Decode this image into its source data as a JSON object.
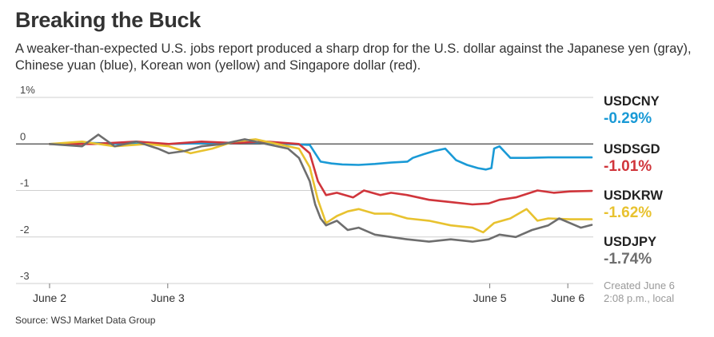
{
  "header": {
    "title": "Breaking the Buck",
    "subtitle": "A weaker-than-expected U.S. jobs report produced a sharp drop for the U.S. dollar against the Japanese yen (gray), Chinese yuan (blue), Korean won (yellow) and Singapore dollar (red)."
  },
  "footer": {
    "source": "Source: WSJ Market Data Group",
    "created_line1": "Created June 6",
    "created_line2": "2:08 p.m., local"
  },
  "legend": [
    {
      "name": "USDCNY",
      "value": "-0.29%",
      "color": "#1a9ad6"
    },
    {
      "name": "USDSGD",
      "value": "-1.01%",
      "color": "#d0353b"
    },
    {
      "name": "USDKRW",
      "value": "-1.62%",
      "color": "#e8c22f"
    },
    {
      "name": "USDJPY",
      "value": "-1.74%",
      "color": "#6e6e6e"
    }
  ],
  "chart_data": {
    "type": "line",
    "title": "Breaking the Buck",
    "xlabel": "",
    "ylabel": "",
    "ylim": [
      -3,
      1
    ],
    "x_range": [
      0,
      100
    ],
    "grid": true,
    "y_ticks": [
      {
        "value": 1,
        "label": "1%"
      },
      {
        "value": 0,
        "label": "0"
      },
      {
        "value": -1,
        "label": "-1"
      },
      {
        "value": -2,
        "label": "-2"
      },
      {
        "value": -3,
        "label": "-3"
      }
    ],
    "x_ticks": [
      {
        "value": 0,
        "label": "June 2"
      },
      {
        "value": 21.8,
        "label": "June 3"
      },
      {
        "value": 81.2,
        "label": "June 5"
      },
      {
        "value": 95.6,
        "label": "June 6"
      }
    ],
    "series": [
      {
        "name": "USDCNY",
        "color": "#1a9ad6",
        "x": [
          0,
          8,
          16,
          22,
          30,
          38,
          44,
          48,
          50,
          52,
          54,
          57,
          60,
          63,
          66,
          67,
          69,
          71,
          73,
          75,
          77,
          79,
          80.5,
          81.5,
          82,
          83,
          85,
          88,
          92,
          96,
          100
        ],
        "y": [
          0,
          0.02,
          0.0,
          0.0,
          0.02,
          0.03,
          0.0,
          -0.02,
          -0.38,
          -0.42,
          -0.44,
          -0.45,
          -0.43,
          -0.4,
          -0.38,
          -0.3,
          -0.22,
          -0.15,
          -0.1,
          -0.35,
          -0.45,
          -0.52,
          -0.55,
          -0.52,
          -0.1,
          -0.05,
          -0.3,
          -0.3,
          -0.29,
          -0.29,
          -0.29
        ]
      },
      {
        "name": "USDSGD",
        "color": "#d0353b",
        "x": [
          0,
          8,
          16,
          22,
          28,
          34,
          40,
          46,
          48,
          49.5,
          51,
          53,
          56,
          58,
          61,
          63,
          66,
          70,
          74,
          78,
          81,
          83,
          86,
          90,
          93,
          96,
          100
        ],
        "y": [
          0,
          0.0,
          0.05,
          0.0,
          0.05,
          0.02,
          0.05,
          0.0,
          -0.2,
          -0.8,
          -1.1,
          -1.05,
          -1.15,
          -1.0,
          -1.1,
          -1.05,
          -1.1,
          -1.2,
          -1.25,
          -1.3,
          -1.28,
          -1.2,
          -1.15,
          -1.0,
          -1.05,
          -1.02,
          -1.01
        ]
      },
      {
        "name": "USDKRW",
        "color": "#e8c22f",
        "x": [
          0,
          6,
          12,
          18,
          22,
          26,
          30,
          34,
          38,
          42,
          46,
          48,
          49.5,
          51,
          53,
          55,
          57,
          60,
          63,
          66,
          70,
          74,
          78,
          80,
          82,
          85,
          88,
          90,
          92,
          96,
          100
        ],
        "y": [
          0,
          0.05,
          -0.05,
          0.0,
          -0.05,
          -0.2,
          -0.1,
          0.05,
          0.1,
          0.0,
          -0.1,
          -0.5,
          -1.2,
          -1.7,
          -1.55,
          -1.45,
          -1.4,
          -1.5,
          -1.5,
          -1.6,
          -1.65,
          -1.75,
          -1.8,
          -1.9,
          -1.7,
          -1.6,
          -1.4,
          -1.65,
          -1.6,
          -1.62,
          -1.62
        ]
      },
      {
        "name": "USDJPY",
        "color": "#6e6e6e",
        "x": [
          0,
          6,
          9,
          12,
          16,
          20,
          22,
          25,
          28,
          32,
          36,
          40,
          44,
          46,
          48,
          49,
          50,
          51,
          53,
          55,
          57,
          60,
          63,
          66,
          70,
          74,
          78,
          81,
          83,
          86,
          89,
          92,
          94,
          96,
          98,
          100
        ],
        "y": [
          0,
          -0.05,
          0.2,
          -0.05,
          0.05,
          -0.1,
          -0.2,
          -0.15,
          -0.05,
          0.0,
          0.1,
          0.0,
          -0.1,
          -0.3,
          -0.8,
          -1.3,
          -1.6,
          -1.75,
          -1.65,
          -1.85,
          -1.8,
          -1.95,
          -2.0,
          -2.05,
          -2.1,
          -2.05,
          -2.1,
          -2.05,
          -1.95,
          -2.0,
          -1.85,
          -1.75,
          -1.6,
          -1.7,
          -1.8,
          -1.74
        ]
      }
    ]
  }
}
